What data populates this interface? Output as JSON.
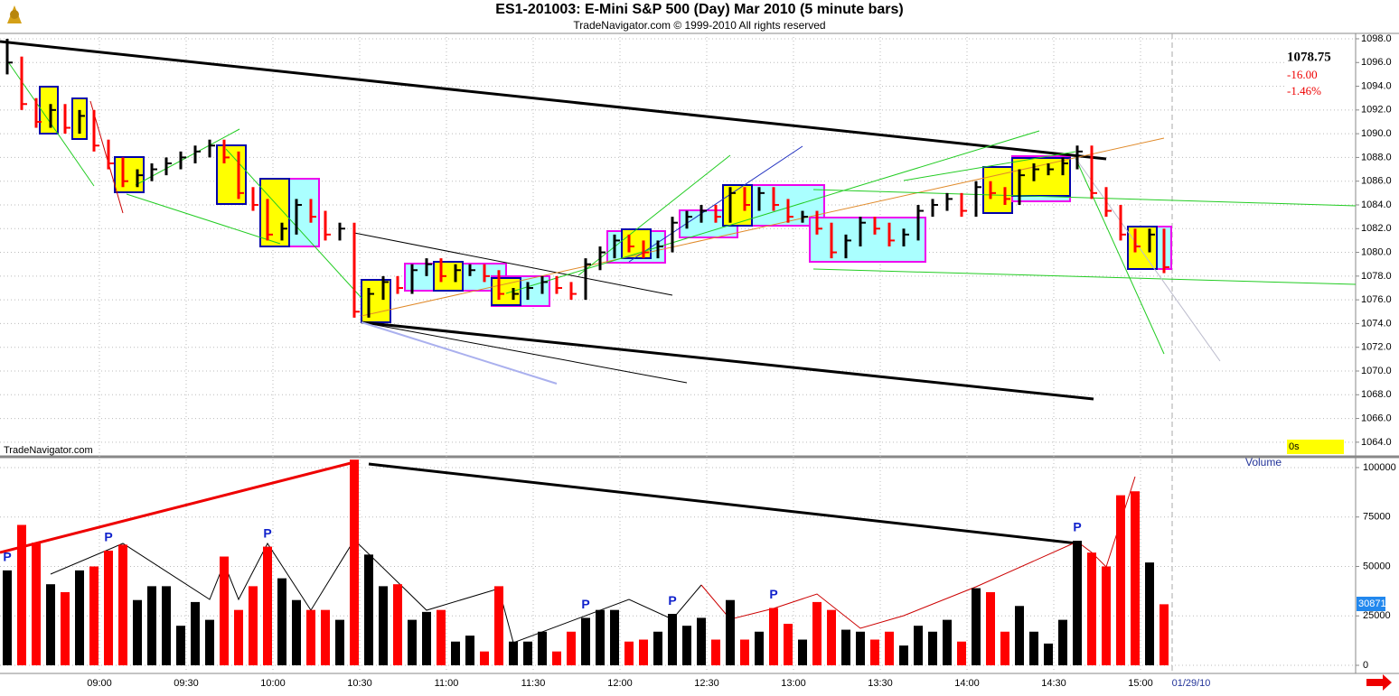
{
  "chart_data": [
    {
      "type": "hlc",
      "title": "ES1-201003:  E-Mini S&P 500 (Day) Mar 2010  (5 minute bars)",
      "subtitle": "TradeNavigator.com © 1999-2010 All rights reserved",
      "watermark": "TradeNavigator.com",
      "timer": "0s",
      "change_label": "-16.00",
      "change_pct_label": "-1.46%",
      "up_color": "#000000",
      "down_color": "#ff0000",
      "grid": true,
      "high": [
        1098,
        1096.5,
        1093,
        1092.5,
        1092.5,
        1092,
        1092,
        1089.5,
        1088,
        1087,
        1087.5,
        1088,
        1088.5,
        1089,
        1089.5,
        1089.5,
        1088.5,
        1085.5,
        1084.5,
        1082.5,
        1084.5,
        1084.5,
        1083.5,
        1082.5,
        1082.5,
        1077,
        1078,
        1078,
        1079,
        1079.5,
        1079.5,
        1079,
        1079,
        1079,
        1078.5,
        1077,
        1077.5,
        1078,
        1078,
        1077.5,
        1079.5,
        1080.5,
        1081.5,
        1081.5,
        1081,
        1081,
        1083,
        1083.5,
        1084,
        1084,
        1085.5,
        1085.5,
        1085.5,
        1085.5,
        1084.5,
        1083.5,
        1083.5,
        1082.5,
        1081.5,
        1083,
        1083,
        1082.5,
        1082,
        1084,
        1084.5,
        1085,
        1085,
        1086,
        1086,
        1085.5,
        1087,
        1087.5,
        1087.5,
        1088,
        1089,
        1089,
        1085.5,
        1084,
        1082,
        1082,
        1082
      ],
      "low": [
        1095,
        1092,
        1090.5,
        1090.5,
        1090,
        1090,
        1088.5,
        1087,
        1085.5,
        1085.5,
        1086,
        1086.5,
        1087,
        1087.5,
        1088,
        1087.5,
        1084.5,
        1083.5,
        1081,
        1081,
        1081.5,
        1082.5,
        1081,
        1081,
        1074.5,
        1074.5,
        1076,
        1076.5,
        1076.5,
        1078,
        1077.5,
        1077.5,
        1078,
        1077.5,
        1076,
        1076,
        1076,
        1076.5,
        1076.5,
        1076,
        1076,
        1078.5,
        1079.5,
        1080,
        1079.5,
        1079.5,
        1080,
        1082,
        1082.5,
        1082.5,
        1082.5,
        1083.5,
        1083.5,
        1083.5,
        1082.5,
        1082.5,
        1081.5,
        1079.5,
        1079.5,
        1080.5,
        1081.5,
        1080.5,
        1080.5,
        1081,
        1083,
        1083.5,
        1083,
        1083,
        1084.5,
        1084,
        1084,
        1086,
        1086.5,
        1086.5,
        1087,
        1084.5,
        1083,
        1081,
        1080,
        1080,
        1078.25
      ],
      "close": [
        1096,
        1092.5,
        1091,
        1092,
        1090.5,
        1091.5,
        1089,
        1087.5,
        1086,
        1086.5,
        1087,
        1087.5,
        1088,
        1088.5,
        1089,
        1088,
        1085,
        1084,
        1081.5,
        1082,
        1084,
        1083,
        1081.5,
        1082,
        1075,
        1076.5,
        1077.5,
        1077,
        1078.5,
        1079,
        1078,
        1078.5,
        1078.5,
        1078,
        1076.5,
        1076.5,
        1077,
        1077.5,
        1077,
        1076.5,
        1079,
        1080,
        1081,
        1080.5,
        1080,
        1080.5,
        1082.5,
        1083,
        1083.5,
        1083,
        1085,
        1084,
        1085,
        1084,
        1083,
        1083,
        1082,
        1080,
        1081,
        1082.5,
        1082,
        1081,
        1081.5,
        1083.5,
        1084,
        1084.5,
        1083.5,
        1085.5,
        1085,
        1084.5,
        1086.5,
        1087,
        1087,
        1087.5,
        1088.5,
        1085,
        1083.5,
        1081.5,
        1080.5,
        1081.5,
        1078.75
      ],
      "ylim": [
        1063,
        1098.5
      ],
      "yticks": [
        {
          "value": 1064,
          "label": "1064.0"
        },
        {
          "value": 1066,
          "label": "1066.0"
        },
        {
          "value": 1068,
          "label": "1068.0"
        },
        {
          "value": 1070,
          "label": "1070.0"
        },
        {
          "value": 1072,
          "label": "1072.0"
        },
        {
          "value": 1074,
          "label": "1074.0"
        },
        {
          "value": 1076,
          "label": "1076.0"
        },
        {
          "value": 1078,
          "label": "1078.0"
        },
        {
          "value": 1080,
          "label": "1080.0"
        },
        {
          "value": 1082,
          "label": "1082.0"
        },
        {
          "value": 1084,
          "label": "1084.0"
        },
        {
          "value": 1086,
          "label": "1086.0"
        },
        {
          "value": 1088,
          "label": "1088.0"
        },
        {
          "value": 1090,
          "label": "1090.0"
        },
        {
          "value": 1092,
          "label": "1092.0"
        },
        {
          "value": 1094,
          "label": "1094.0"
        },
        {
          "value": 1096,
          "label": "1096.0"
        },
        {
          "value": 1098,
          "label": "1098.0"
        }
      ]
    },
    {
      "type": "bar",
      "title": "Volume",
      "date_label": "01/29/10",
      "pivot_labels": [
        "P",
        "P",
        "P",
        "P",
        "P",
        "P",
        "P"
      ],
      "categories": [
        null,
        null,
        null,
        null,
        null,
        null,
        "09:00",
        null,
        null,
        null,
        null,
        null,
        "09:30",
        null,
        null,
        null,
        null,
        null,
        "10:00",
        null,
        null,
        null,
        null,
        null,
        "10:30",
        null,
        null,
        null,
        null,
        null,
        "11:00",
        null,
        null,
        null,
        null,
        null,
        "11:30",
        null,
        null,
        null,
        null,
        null,
        "12:00",
        null,
        null,
        null,
        null,
        null,
        "12:30",
        null,
        null,
        null,
        null,
        null,
        "13:00",
        null,
        null,
        null,
        null,
        null,
        "13:30",
        null,
        null,
        null,
        null,
        null,
        "14:00",
        null,
        null,
        null,
        null,
        null,
        "14:30",
        null,
        null,
        null,
        null,
        null,
        "15:00",
        null,
        null
      ],
      "values": [
        48000,
        71000,
        62000,
        41000,
        37000,
        48000,
        50000,
        58000,
        61000,
        33000,
        40000,
        40000,
        20000,
        32000,
        23000,
        55000,
        28000,
        40000,
        60000,
        44000,
        33000,
        28000,
        28000,
        23000,
        104000,
        56000,
        40000,
        41000,
        23000,
        27000,
        28000,
        12000,
        15000,
        7000,
        40000,
        12000,
        12000,
        17000,
        7000,
        17000,
        24000,
        28000,
        28000,
        12000,
        13000,
        17000,
        26000,
        20000,
        24000,
        13000,
        33000,
        13000,
        17000,
        29000,
        21000,
        13000,
        32000,
        28000,
        18000,
        17000,
        13000,
        17000,
        10000,
        20000,
        17000,
        23000,
        12000,
        39000,
        37000,
        17000,
        30000,
        17000,
        11000,
        23000,
        63000,
        57000,
        50000,
        86000,
        88000,
        52000,
        30871
      ],
      "ylim": [
        0,
        105000
      ],
      "yticks": [
        0,
        25000,
        50000,
        75000,
        100000
      ],
      "grid": true
    }
  ]
}
